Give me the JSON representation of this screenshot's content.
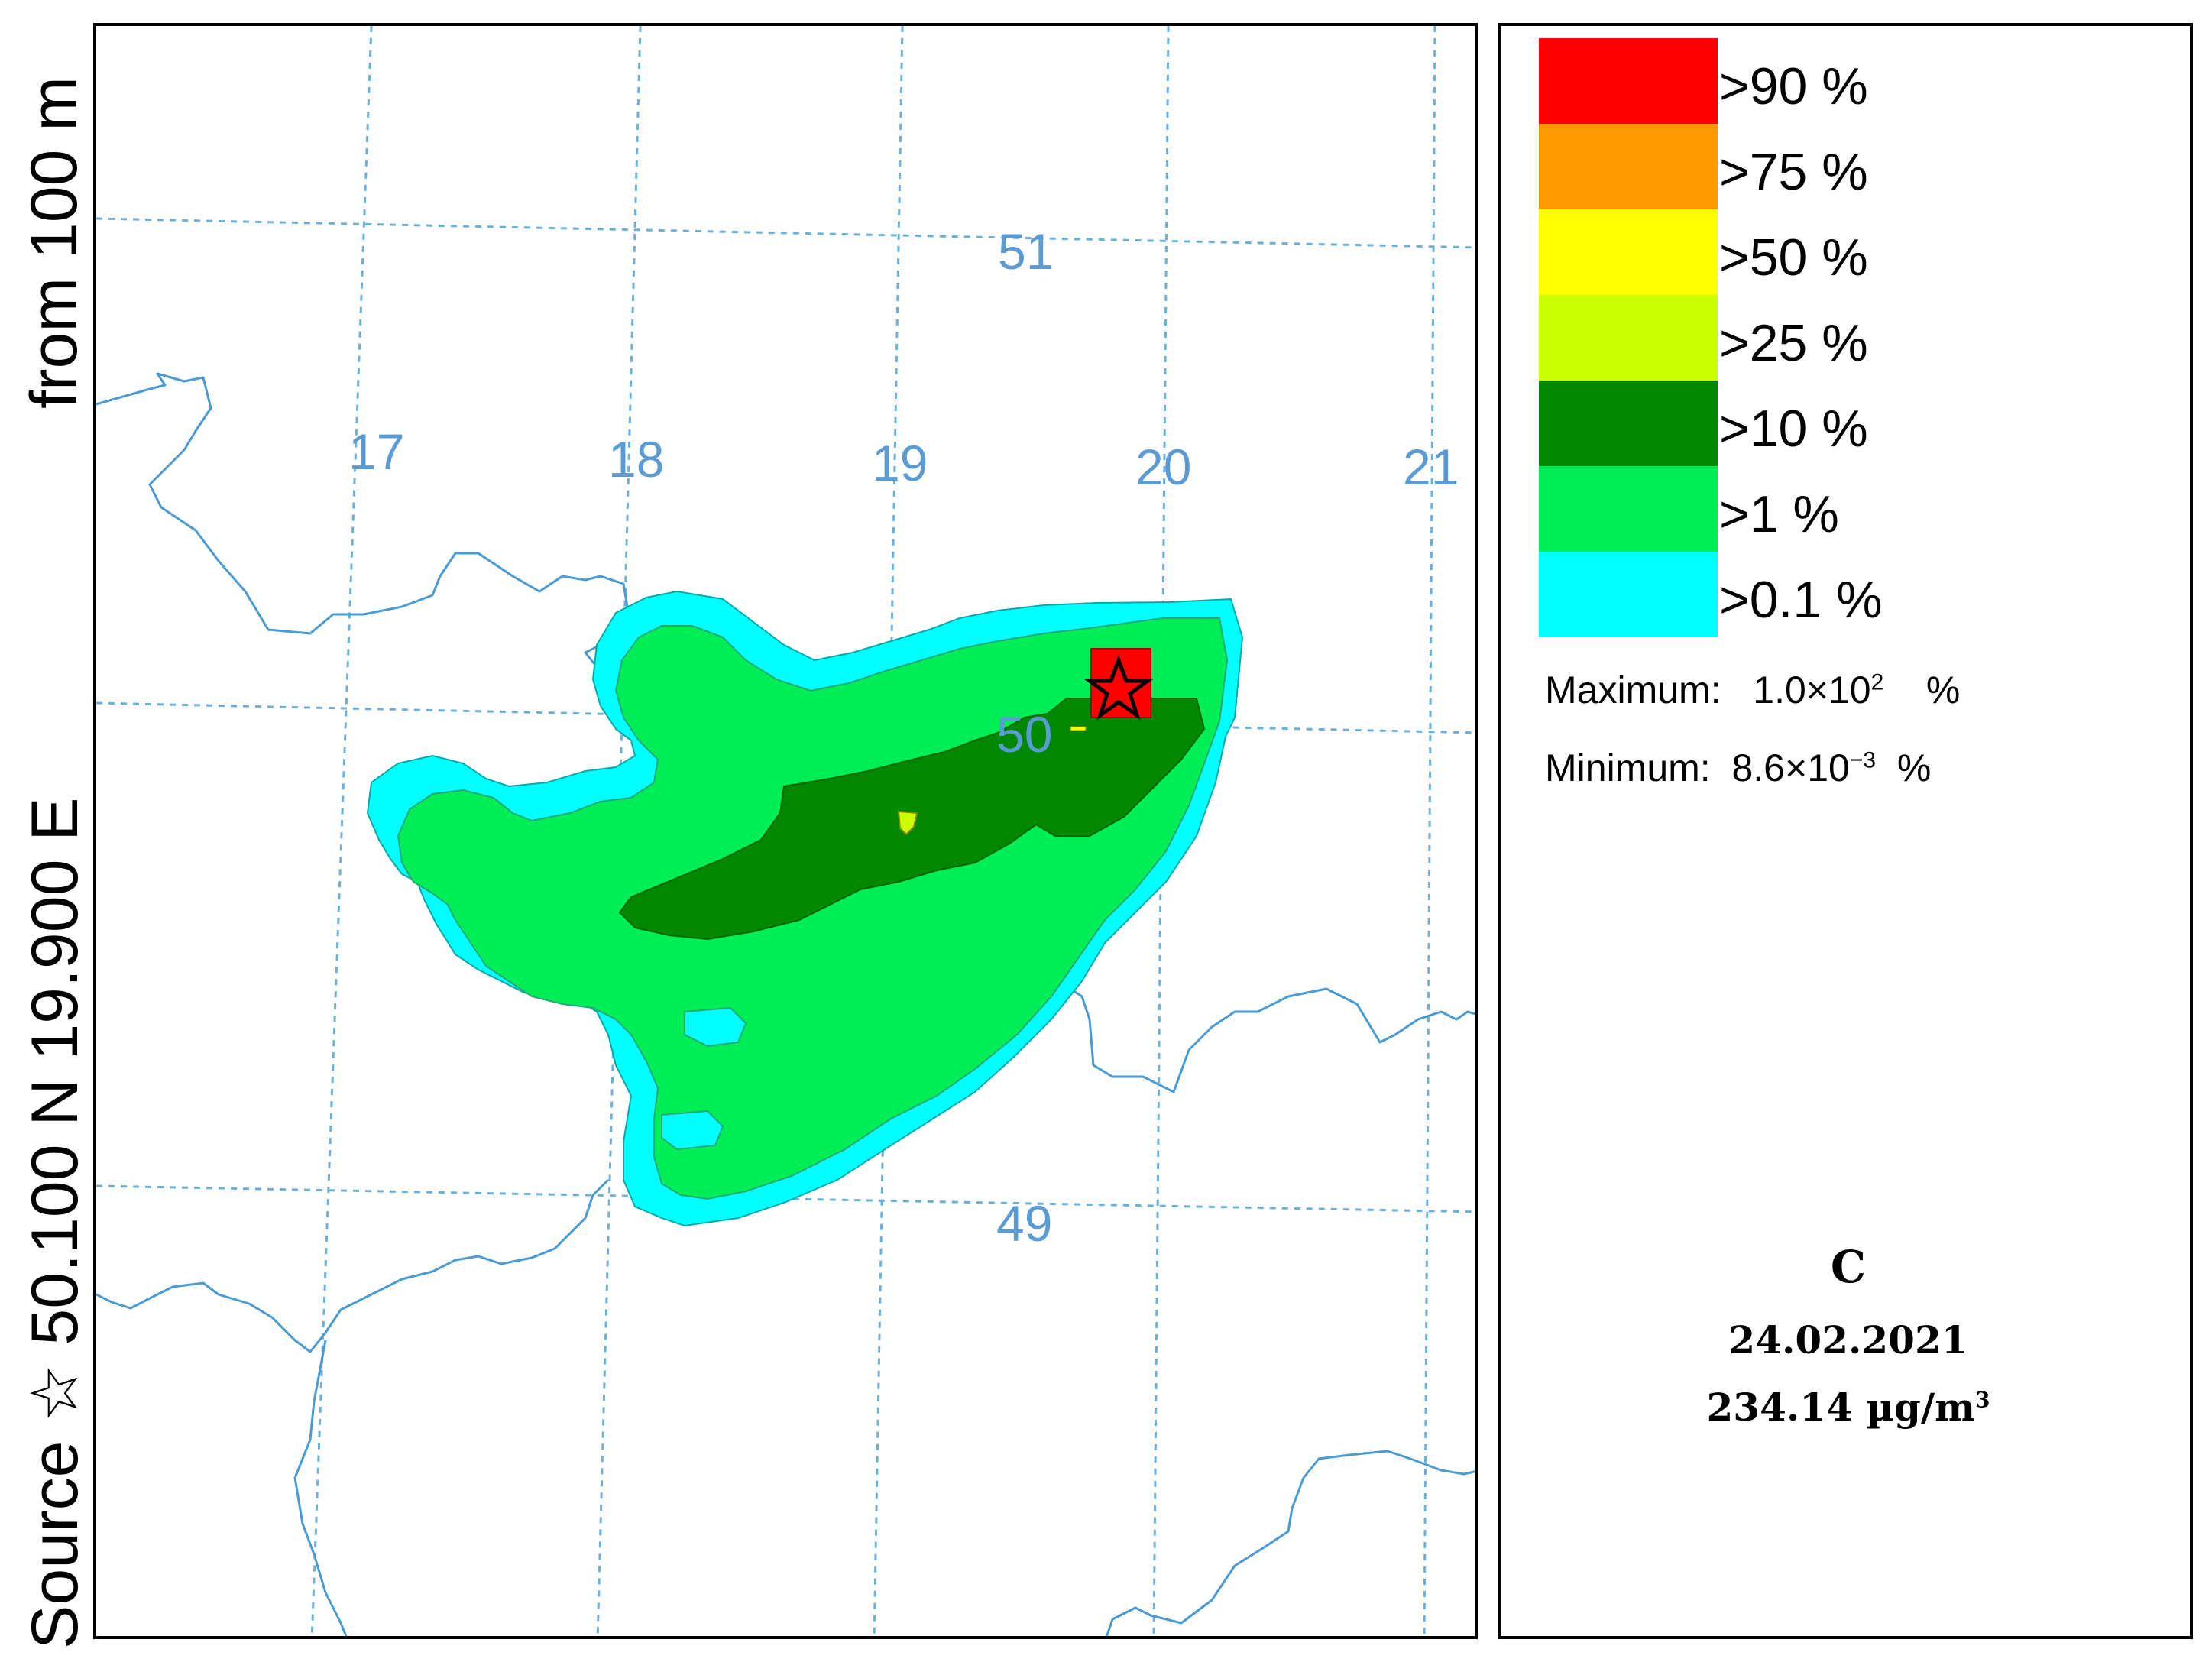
{
  "side_label": {
    "source_word": "Source",
    "coords": "50.100  N  19.900  E",
    "from_text": "from   100 m"
  },
  "map": {
    "meridian_labels": [
      "17",
      "18",
      "19",
      "20",
      "21"
    ],
    "parallel_labels": [
      "51",
      "50",
      "49"
    ],
    "grid_color": "#6ab0dc",
    "border_color": "#4a9ad4",
    "label_color": "#5b9bd5"
  },
  "legend": {
    "items": [
      {
        "label": ">90  %",
        "color": "#ff0000"
      },
      {
        "label": ">75  %",
        "color": "#ff9900"
      },
      {
        "label": ">50  %",
        "color": "#ffff00"
      },
      {
        "label": ">25  %",
        "color": "#ccff00"
      },
      {
        "label": ">10  %",
        "color": "#008800"
      },
      {
        "label": ">1  %",
        "color": "#00ee55"
      },
      {
        "label": ">0.1  %",
        "color": "#00ffff"
      }
    ],
    "maximum_label": "Maximum:",
    "maximum_mantissa": "1.0×10",
    "maximum_exp": "2",
    "maximum_unit": "%",
    "minimum_label": "Minimum:",
    "minimum_mantissa": "8.6×10",
    "minimum_exp": "−3",
    "minimum_unit": "%"
  },
  "panel": {
    "letter": "C",
    "date": "24.02.2021",
    "concentration_value": "234.14",
    "concentration_unit": "µg/m",
    "concentration_exp": "3"
  }
}
